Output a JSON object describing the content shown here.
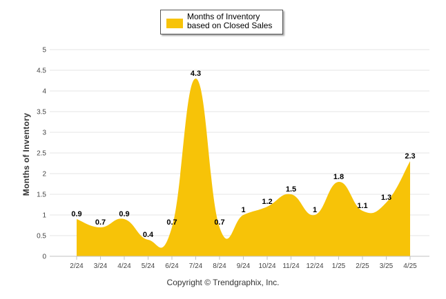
{
  "chart_data": {
    "type": "area",
    "categories": [
      "2/24",
      "3/24",
      "4/24",
      "5/24",
      "6/24",
      "7/24",
      "8/24",
      "9/24",
      "10/24",
      "11/24",
      "12/24",
      "1/25",
      "2/25",
      "3/25",
      "4/25"
    ],
    "series": [
      {
        "name": "Months of Inventory based on Closed Sales",
        "values": [
          0.9,
          0.7,
          0.9,
          0.4,
          0.7,
          4.3,
          0.7,
          1,
          1.2,
          1.5,
          1,
          1.8,
          1.1,
          1.3,
          2.3
        ]
      }
    ],
    "data_labels": [
      "0.9",
      "0.7",
      "0.9",
      "0.4",
      "0.7",
      "4.3",
      "0.7",
      "1",
      "1.2",
      "1.5",
      "1",
      "1.8",
      "1.1",
      "1.3",
      "2.3"
    ],
    "ylabel": "Months of Inventory",
    "xlabel": "",
    "ylim": [
      0,
      5
    ],
    "yticks": [
      "0",
      "0.5",
      "1",
      "1.5",
      "2",
      "2.5",
      "3",
      "3.5",
      "4",
      "4.5",
      "5"
    ],
    "grid": true,
    "legend": "top-center"
  },
  "colors": {
    "fill": "#F7C308",
    "grid": "#E6E6E6",
    "axis": "#C0C0C0"
  },
  "footer": {
    "copyright": "Copyright © Trendgraphix, Inc."
  }
}
